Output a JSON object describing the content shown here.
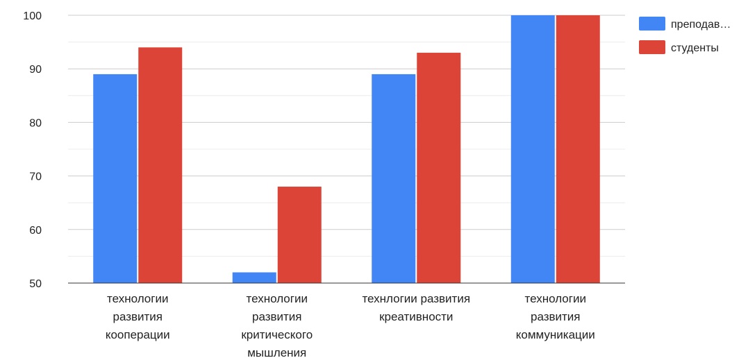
{
  "chart_data": {
    "type": "bar",
    "categories": [
      [
        "технологии",
        "развития",
        "кооперации"
      ],
      [
        "технологии",
        "развития",
        "критического",
        "мышления"
      ],
      [
        "технлогии развития",
        "креативности"
      ],
      [
        "технологии",
        "развития",
        "коммуникации"
      ]
    ],
    "series": [
      {
        "name": "преподав…",
        "values": [
          89,
          52,
          89,
          100
        ],
        "color": "#4285f4"
      },
      {
        "name": "студенты",
        "values": [
          94,
          68,
          93,
          100
        ],
        "color": "#db4437"
      }
    ],
    "ylim": [
      50,
      100
    ],
    "yticks": [
      50,
      60,
      70,
      80,
      90,
      100
    ],
    "grid": true,
    "legend_position": "right",
    "title": "",
    "xlabel": "",
    "ylabel": ""
  }
}
